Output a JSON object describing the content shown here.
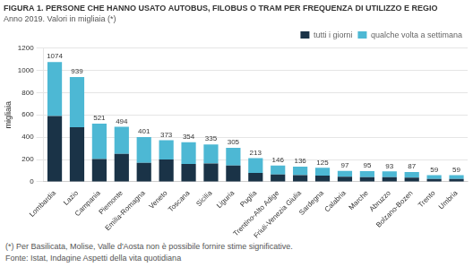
{
  "chart_data": {
    "type": "bar",
    "title": "FIGURA 1. PERSONE CHE HANNO USATO AUTOBUS, FILOBUS O TRAM PER FREQUENZA DI UTILIZZO E REGIO",
    "subtitle": "Anno 2019. Valori in migliaia (*)",
    "ylabel": "migliaia",
    "annotations": [
      "(*) Per Basilicata, Molise, Valle d'Aosta non è possibile fornire stime significative.",
      "Fonte: Istat, Indagine Aspetti della vita quotidiana"
    ],
    "categories": [
      "Lombardia",
      "Lazio",
      "Campania",
      "Piemonte",
      "Emilia-Romagna",
      "Veneto",
      "Toscana",
      "Sicilia",
      "Liguria",
      "Puglia",
      "Trentino-Alto Adige",
      "Friuli-Venezia Giulia",
      "Sardegna",
      "Calabria",
      "Marche",
      "Abruzzo",
      "Bolzano-Bozen",
      "Trento",
      "Umbria"
    ],
    "series": [
      {
        "name": "tutti i giorni",
        "color": "#1a3347",
        "values": [
          590,
          490,
          205,
          250,
          170,
          200,
          160,
          165,
          145,
          80,
          65,
          60,
          55,
          45,
          42,
          42,
          38,
          25,
          25
        ]
      },
      {
        "name": "qualche volta a settimana",
        "color": "#4db8d4",
        "values": [
          484,
          449,
          316,
          244,
          231,
          173,
          194,
          170,
          160,
          133,
          81,
          76,
          70,
          52,
          53,
          51,
          49,
          34,
          34
        ]
      }
    ],
    "totals": [
      1074,
      939,
      521,
      494,
      401,
      373,
      354,
      335,
      305,
      213,
      146,
      136,
      125,
      97,
      95,
      93,
      87,
      59,
      59
    ],
    "stacked": true,
    "ylim": [
      0,
      1200
    ],
    "yticks": [
      0,
      200,
      400,
      600,
      800,
      1000,
      1200
    ],
    "grid": true,
    "legend": "upper right"
  }
}
